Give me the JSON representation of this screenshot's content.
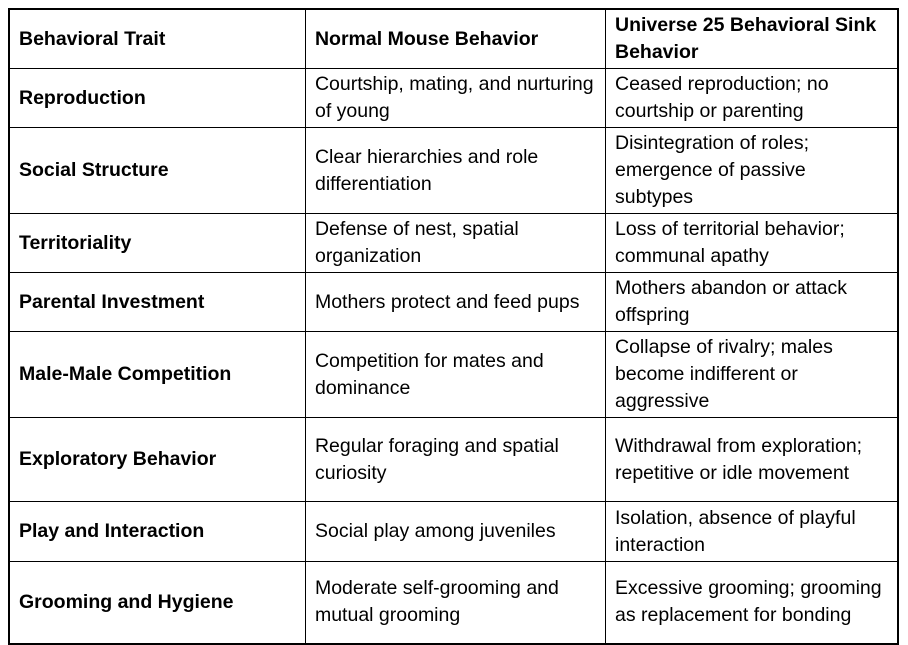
{
  "colors": {
    "background": "#ffffff",
    "border": "#000000",
    "text": "#000000"
  },
  "table": {
    "columns": [
      "Behavioral Trait",
      "Normal Mouse Behavior",
      "Universe 25 Behavioral Sink Behavior"
    ],
    "rows": [
      {
        "trait": "Reproduction",
        "normal": "Courtship, mating, and nurturing of young",
        "sink": "Ceased reproduction; no courtship or parenting"
      },
      {
        "trait": "Social Structure",
        "normal": "Clear hierarchies and role differentiation",
        "sink": "Disintegration of roles; emergence of passive subtypes"
      },
      {
        "trait": "Territoriality",
        "normal": "Defense of nest, spatial organization",
        "sink": "Loss of territorial behavior; communal apathy"
      },
      {
        "trait": "Parental Investment",
        "normal": "Mothers protect and feed pups",
        "sink": "Mothers abandon or attack offspring"
      },
      {
        "trait": "Male-Male Competition",
        "normal": "Competition for mates and dominance",
        "sink": "Collapse of rivalry; males become indifferent or aggressive"
      },
      {
        "trait": "Exploratory Behavior",
        "normal": "Regular foraging and spatial curiosity",
        "sink": "Withdrawal from exploration; repetitive or idle movement"
      },
      {
        "trait": "Play and Interaction",
        "normal": "Social play among juveniles",
        "sink": "Isolation, absence of playful interaction"
      },
      {
        "trait": "Grooming and Hygiene",
        "normal": "Moderate self-grooming and mutual grooming",
        "sink": "Excessive grooming; grooming as replacement for bonding"
      }
    ]
  }
}
